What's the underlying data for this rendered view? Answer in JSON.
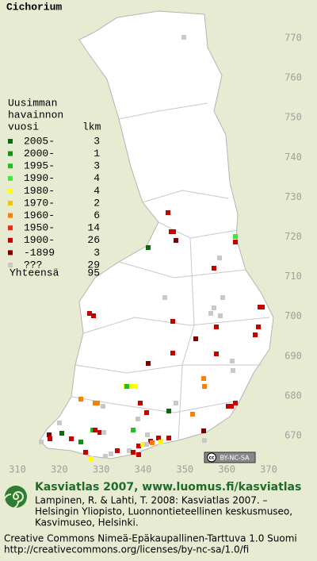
{
  "title": "Cichorium",
  "legend": {
    "header": [
      "Uusimman",
      "havainnon",
      "vuosi"
    ],
    "count_header": "lkm",
    "entries": [
      {
        "label": "2005-",
        "count": 3,
        "color": "#0b6a0b"
      },
      {
        "label": "2000-",
        "count": 1,
        "color": "#138f13"
      },
      {
        "label": "1995-",
        "count": 3,
        "color": "#1fbf1f"
      },
      {
        "label": "1990-",
        "count": 4,
        "color": "#3ee83e"
      },
      {
        "label": "1980-",
        "count": 4,
        "color": "#ffff00"
      },
      {
        "label": "1970-",
        "count": 2,
        "color": "#f0c800"
      },
      {
        "label": "1960-",
        "count": 6,
        "color": "#ff8000"
      },
      {
        "label": "1950-",
        "count": 14,
        "color": "#f02818"
      },
      {
        "label": "1900-",
        "count": 26,
        "color": "#c80000"
      },
      {
        "label": "-1899",
        "count": 3,
        "color": "#800000"
      },
      {
        "label": "???",
        "count": 29,
        "color": "#c8c8c8"
      }
    ],
    "total_label": "Yhteensä",
    "total": 95
  },
  "grid": {
    "north": [
      770,
      760,
      750,
      740,
      730,
      720,
      710,
      700,
      690,
      680,
      670
    ],
    "east": [
      310,
      320,
      330,
      340,
      350,
      360,
      370
    ]
  },
  "badge": {
    "cc": "cc",
    "text": "BY-NC-SA"
  },
  "footer": {
    "heading": "Kasviatlas 2007, www.luomus.fi/kasviatlas",
    "citation": [
      "Lampinen, R. & Lahti, T. 2008: Kasviatlas 2007. –",
      "Helsingin Yliopisto, Luonnontieteellinen keskusmuseo,",
      "Kasvimuseo, Helsinki."
    ],
    "license": [
      "Creative Commons Nimeä-Epäkaupallinen-Tarttuva 1.0 Suomi",
      "http://creativecommons.org/licenses/by-nc-sa/1.0/fi"
    ]
  }
}
